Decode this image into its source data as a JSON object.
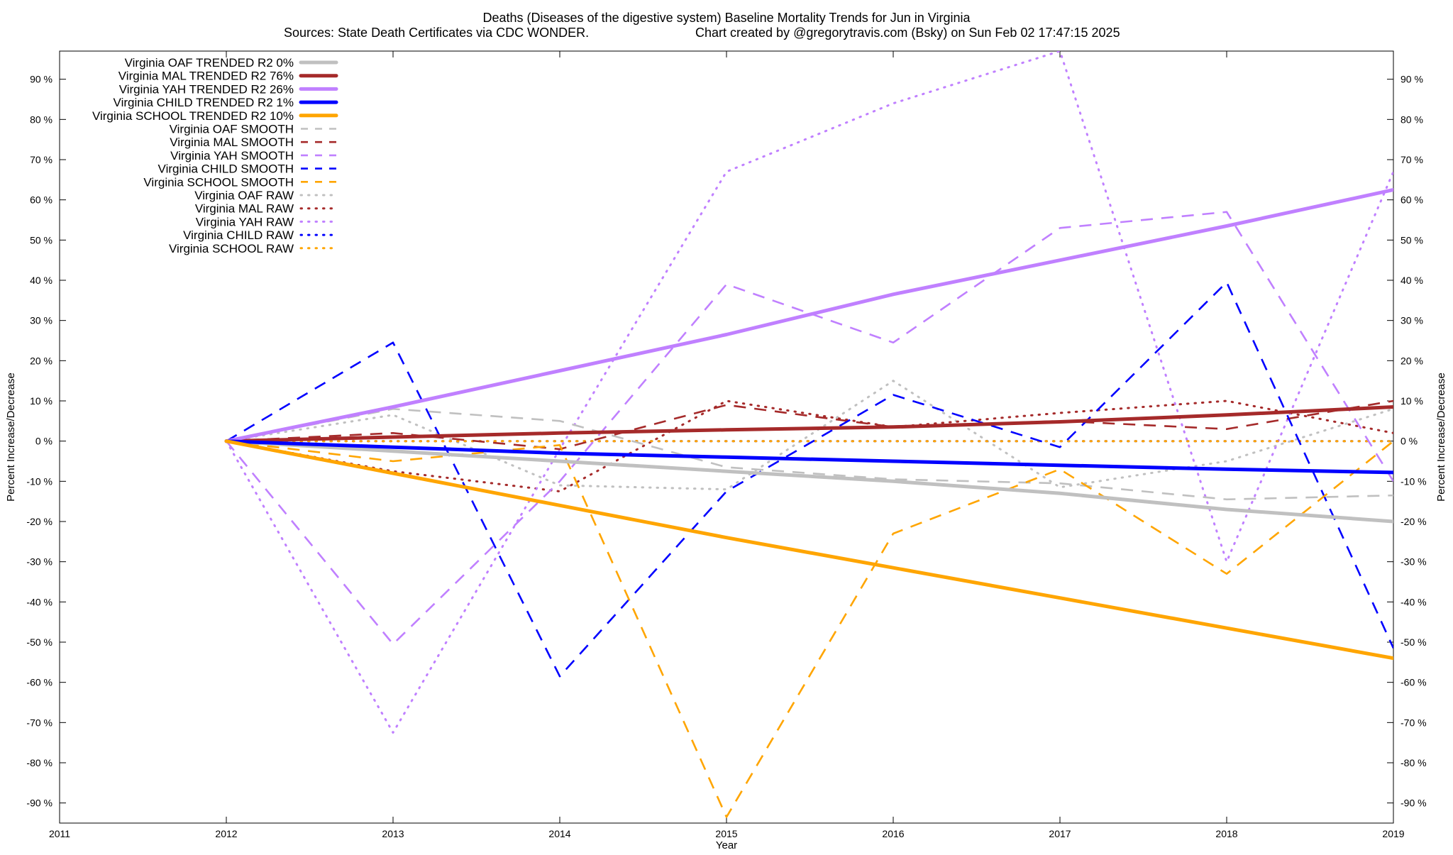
{
  "chart_data": {
    "type": "line",
    "title": "Deaths (Diseases of the digestive system)  Baseline Mortality Trends for Jun in Virginia",
    "subtitle_left": "Sources: State Death Certificates via CDC WONDER.",
    "subtitle_right": "Chart created by @gregorytravis.com (Bsky) on Sun Feb 02 17:47:15 2025",
    "xlabel": "Year",
    "ylabel_left": "Percent Increase/Decrease",
    "ylabel_right": "Percent Increase/Decrease",
    "xlim": [
      2011,
      2019
    ],
    "ylim": [
      -95,
      97
    ],
    "x_ticks": [
      2011,
      2012,
      2013,
      2014,
      2015,
      2016,
      2017,
      2018,
      2019
    ],
    "x_tick_labels": [
      "2011",
      "2012",
      "2013",
      "2014",
      "2015",
      "2016",
      "2017",
      "2018",
      "2019"
    ],
    "y_ticks": [
      90,
      80,
      70,
      60,
      50,
      40,
      30,
      20,
      10,
      0,
      -10,
      -20,
      -30,
      -40,
      -50,
      -60,
      -70,
      -80,
      -90
    ],
    "y_tick_labels": [
      "90 %",
      "80 %",
      "70 %",
      "60 %",
      "50 %",
      "40 %",
      "30 %",
      "20 %",
      "10 %",
      "0 %",
      "-10 %",
      "-20 %",
      "-30 %",
      "-40 %",
      "-50 %",
      "-60 %",
      "-70 %",
      "-80 %",
      "-90 %"
    ],
    "grid": false,
    "legend_position": "top-left",
    "series": [
      {
        "name": "Virginia OAF TRENDED R2   0%",
        "style": "solid",
        "color": "#c0c0c0",
        "x": [
          2012,
          2013,
          2014,
          2015,
          2016,
          2017,
          2018,
          2019
        ],
        "values": [
          0,
          -2.5,
          -5,
          -7.5,
          -10,
          -13,
          -17,
          -20
        ]
      },
      {
        "name": "Virginia MAL TRENDED R2  76%",
        "style": "solid",
        "color": "#a52a2a",
        "x": [
          2012,
          2013,
          2014,
          2015,
          2016,
          2017,
          2018,
          2019
        ],
        "values": [
          0,
          1,
          2,
          2.8,
          3.5,
          4.8,
          6.5,
          8.5
        ]
      },
      {
        "name": "Virginia YAH TRENDED R2  26%",
        "style": "solid",
        "color": "#c080ff",
        "x": [
          2012,
          2013,
          2014,
          2015,
          2016,
          2017,
          2018,
          2019
        ],
        "values": [
          0,
          8.5,
          17.5,
          26.5,
          36.5,
          45,
          53.5,
          62.5
        ]
      },
      {
        "name": "Virginia CHILD TRENDED R2   1%",
        "style": "solid",
        "color": "#0000ff",
        "x": [
          2012,
          2013,
          2014,
          2015,
          2016,
          2017,
          2018,
          2019
        ],
        "values": [
          0,
          -1.5,
          -3,
          -4,
          -5,
          -6,
          -7,
          -7.8
        ]
      },
      {
        "name": "Virginia SCHOOL TRENDED R2  10%",
        "style": "solid",
        "color": "#ffa500",
        "x": [
          2012,
          2013,
          2014,
          2015,
          2016,
          2017,
          2018,
          2019
        ],
        "values": [
          0,
          -8,
          -16,
          -24,
          -31.5,
          -39,
          -46.5,
          -54
        ]
      },
      {
        "name": "Virginia OAF SMOOTH",
        "style": "dash",
        "color": "#c0c0c0",
        "x": [
          2012,
          2013,
          2014,
          2015,
          2016,
          2017,
          2018,
          2019
        ],
        "values": [
          0,
          8,
          5,
          -6.5,
          -9.5,
          -10.5,
          -14.5,
          -13.5
        ]
      },
      {
        "name": "Virginia MAL SMOOTH",
        "style": "dash",
        "color": "#a52a2a",
        "x": [
          2012,
          2013,
          2014,
          2015,
          2016,
          2017,
          2018,
          2019
        ],
        "values": [
          0,
          2,
          -2,
          9,
          3.5,
          5,
          3,
          10
        ]
      },
      {
        "name": "Virginia YAH SMOOTH",
        "style": "dash",
        "color": "#c080ff",
        "x": [
          2012,
          2013,
          2014,
          2015,
          2016,
          2017,
          2018,
          2019
        ],
        "values": [
          0,
          -50.5,
          -10,
          39,
          24.5,
          53,
          57,
          -10
        ]
      },
      {
        "name": "Virginia CHILD SMOOTH",
        "style": "dash",
        "color": "#0000ff",
        "x": [
          2012,
          2013,
          2014,
          2015,
          2016,
          2017,
          2018,
          2019
        ],
        "values": [
          0,
          24.5,
          -58.5,
          -12.5,
          11.5,
          -1.5,
          39.5,
          -51.5
        ]
      },
      {
        "name": "Virginia SCHOOL SMOOTH",
        "style": "dash",
        "color": "#ffa500",
        "x": [
          2012,
          2013,
          2014,
          2015,
          2016,
          2017,
          2018,
          2019
        ],
        "values": [
          0,
          -5,
          -1,
          -93.5,
          -23,
          -7,
          -33,
          0
        ]
      },
      {
        "name": "Virginia OAF RAW",
        "style": "dot",
        "color": "#c0c0c0",
        "x": [
          2012,
          2013,
          2014,
          2015,
          2016,
          2017,
          2018,
          2019
        ],
        "values": [
          0,
          6.5,
          -11,
          -12,
          15,
          -11.5,
          -5,
          8
        ]
      },
      {
        "name": "Virginia MAL RAW",
        "style": "dot",
        "color": "#a52a2a",
        "x": [
          2012,
          2013,
          2014,
          2015,
          2016,
          2017,
          2018,
          2019
        ],
        "values": [
          0,
          -7.5,
          -12.5,
          10,
          3.5,
          7,
          10,
          2
        ]
      },
      {
        "name": "Virginia YAH RAW",
        "style": "dot",
        "color": "#c080ff",
        "x": [
          2012,
          2013,
          2014,
          2015,
          2016,
          2017,
          2018,
          2019
        ],
        "values": [
          0,
          -72.5,
          -2,
          67,
          84,
          97,
          -30,
          67
        ]
      },
      {
        "name": "Virginia CHILD RAW",
        "style": "dot",
        "color": "#0000ff",
        "x": [
          2012,
          2013,
          2014,
          2015,
          2016,
          2017,
          2018,
          2019
        ],
        "values": [
          0,
          0,
          0,
          0,
          0,
          0,
          0,
          0
        ]
      },
      {
        "name": "Virginia SCHOOL RAW",
        "style": "dot",
        "color": "#ffa500",
        "x": [
          2012,
          2013,
          2014,
          2015,
          2016,
          2017,
          2018,
          2019
        ],
        "values": [
          0,
          0,
          0,
          0,
          0,
          0,
          0,
          0
        ]
      }
    ]
  }
}
